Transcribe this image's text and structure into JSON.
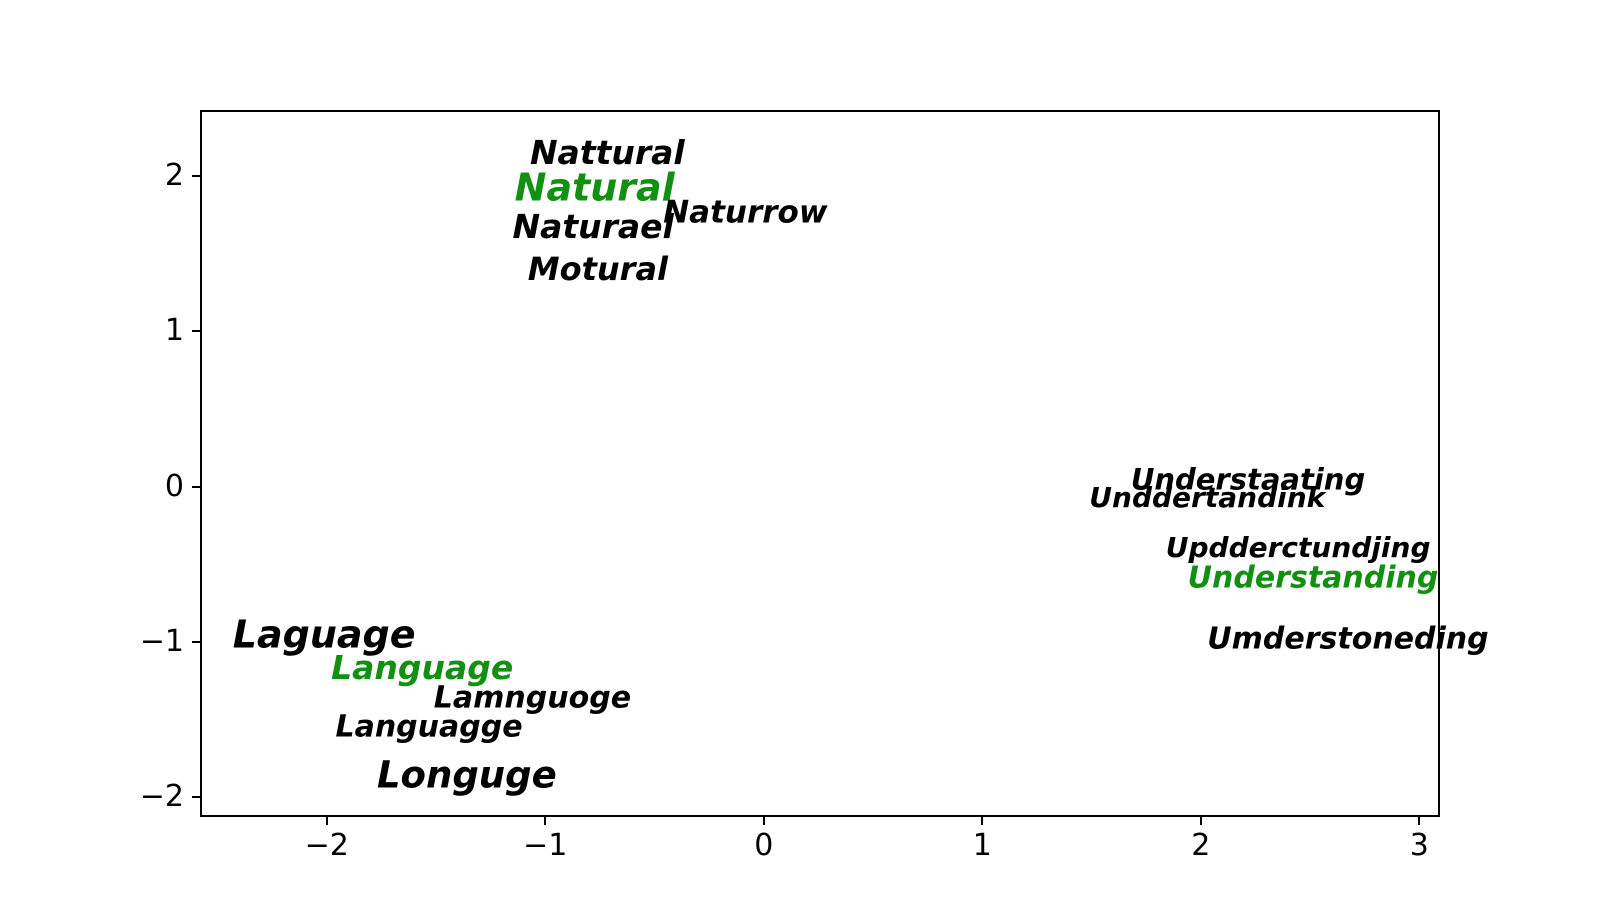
{
  "figure": {
    "background": "#ffffff",
    "spine_color": "#000000"
  },
  "chart_data": {
    "type": "scatter",
    "title": "",
    "xlabel": "",
    "ylabel": "",
    "grid": false,
    "legend": null,
    "xlim": [
      -2.58,
      3.095
    ],
    "ylim": [
      -2.127,
      2.425
    ],
    "xticks": {
      "values": [
        -2,
        -1,
        0,
        1,
        2,
        3
      ],
      "labels": [
        "−2",
        "−1",
        "0",
        "1",
        "2",
        "3"
      ]
    },
    "yticks": {
      "values": [
        2,
        1,
        0,
        -1,
        -2
      ],
      "labels": [
        "2",
        "1",
        "0",
        "−1",
        "−2"
      ]
    },
    "colors": {
      "default": "#000000",
      "highlight": "#129012"
    },
    "points": [
      {
        "label": "Nattural",
        "x": -1.07,
        "y": 2.08,
        "color": "#000000",
        "fontsize": 33
      },
      {
        "label": "Natural",
        "x": -1.14,
        "y": 1.84,
        "color": "#129012",
        "fontsize": 38
      },
      {
        "label": "Naturael",
        "x": -1.15,
        "y": 1.6,
        "color": "#000000",
        "fontsize": 33
      },
      {
        "label": "Naturrow",
        "x": -0.46,
        "y": 1.69,
        "color": "#000000",
        "fontsize": 31
      },
      {
        "label": "Motural",
        "x": -1.08,
        "y": 1.33,
        "color": "#000000",
        "fontsize": 32
      },
      {
        "label": "Laguage",
        "x": -2.43,
        "y": -1.04,
        "color": "#000000",
        "fontsize": 38
      },
      {
        "label": "Language",
        "x": -1.98,
        "y": -1.24,
        "color": "#129012",
        "fontsize": 33
      },
      {
        "label": "Lamnguoge",
        "x": -1.51,
        "y": -1.43,
        "color": "#000000",
        "fontsize": 30
      },
      {
        "label": "Languagge",
        "x": -1.96,
        "y": -1.62,
        "color": "#000000",
        "fontsize": 30
      },
      {
        "label": "Longuge",
        "x": -1.77,
        "y": -1.94,
        "color": "#000000",
        "fontsize": 37
      },
      {
        "label": "Understaating",
        "x": 1.68,
        "y": -0.02,
        "color": "#000000",
        "fontsize": 29
      },
      {
        "label": "Unddertandink",
        "x": 1.49,
        "y": -0.14,
        "color": "#000000",
        "fontsize": 28
      },
      {
        "label": "Updderctundjing",
        "x": 1.84,
        "y": -0.46,
        "color": "#000000",
        "fontsize": 28
      },
      {
        "label": "Understanding",
        "x": 1.94,
        "y": -0.66,
        "color": "#129012",
        "fontsize": 30
      },
      {
        "label": "Umderstoneding",
        "x": 2.03,
        "y": -1.05,
        "color": "#000000",
        "fontsize": 30
      }
    ]
  }
}
